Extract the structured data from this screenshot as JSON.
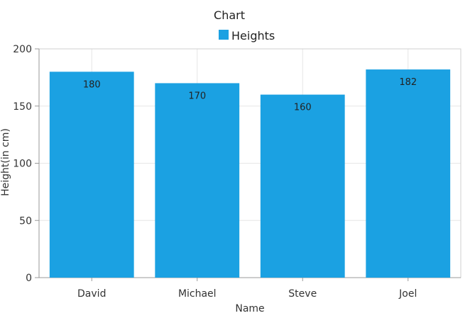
{
  "chart_data": {
    "type": "bar",
    "title": "Chart",
    "xlabel": "Name",
    "ylabel": "Height(in cm)",
    "categories": [
      "David",
      "Michael",
      "Steve",
      "Joel"
    ],
    "series": [
      {
        "name": "Heights",
        "values": [
          180,
          170,
          160,
          182
        ],
        "color": "#1ba1e2"
      }
    ],
    "ylim": [
      0,
      200
    ],
    "yticks": [
      0,
      50,
      100,
      150,
      200
    ],
    "grid": true,
    "legend_position": "top-center",
    "data_labels": true
  }
}
